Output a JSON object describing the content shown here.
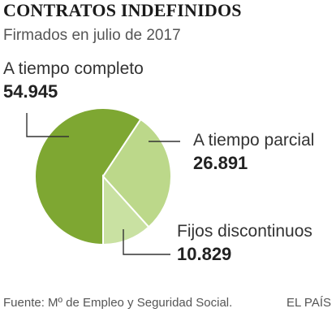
{
  "header": {
    "title": "CONTRATOS INDEFINIDOS",
    "subtitle": "Firmados en julio de 2017"
  },
  "chart_data": {
    "type": "pie",
    "title": "CONTRATOS INDEFINIDOS",
    "subtitle": "Firmados en julio de 2017",
    "slices": [
      {
        "label": "A tiempo completo",
        "value_label": "54.945",
        "value": 54945,
        "color": "#7ea732"
      },
      {
        "label": "A tiempo parcial",
        "value_label": "26.891",
        "value": 26891,
        "color": "#bcd88a"
      },
      {
        "label": "Fijos discontinuos",
        "value_label": "10.829",
        "value": 10829,
        "color": "#c9e1a2"
      }
    ]
  },
  "footer": {
    "source": "Fuente: Mº de Empleo y Seguridad Social.",
    "brand": "EL PAÍS"
  }
}
